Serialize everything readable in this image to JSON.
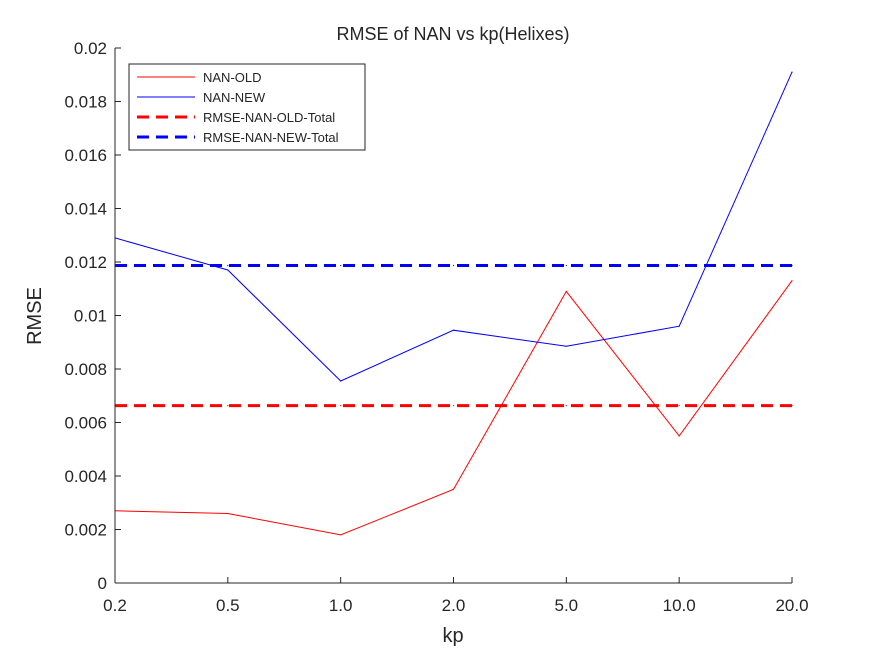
{
  "chart_data": {
    "type": "line",
    "title": "RMSE of NAN vs kp(Helixes)",
    "xlabel": "kp",
    "ylabel": "RMSE",
    "categories": [
      "0.2",
      "0.5",
      "1.0",
      "2.0",
      "5.0",
      "10.0",
      "20.0"
    ],
    "ylim": [
      0,
      0.02
    ],
    "yticks": [
      "0",
      "0.002",
      "0.004",
      "0.006",
      "0.008",
      "0.01",
      "0.012",
      "0.014",
      "0.016",
      "0.018",
      "0.02"
    ],
    "grid": false,
    "legend_position": "top-left",
    "series": [
      {
        "name": "NAN-OLD",
        "color": "#ff0000",
        "style": "solid",
        "values": [
          0.0027,
          0.0026,
          0.0018,
          0.0035,
          0.0109,
          0.0055,
          0.0113
        ]
      },
      {
        "name": "NAN-NEW",
        "color": "#0000ff",
        "style": "solid",
        "values": [
          0.0129,
          0.0117,
          0.00755,
          0.00945,
          0.00885,
          0.0096,
          0.0191
        ]
      },
      {
        "name": "RMSE-NAN-OLD-Total",
        "color": "#ff0000",
        "style": "dashed",
        "values": [
          0.00663,
          0.00663,
          0.00663,
          0.00663,
          0.00663,
          0.00663,
          0.00663
        ]
      },
      {
        "name": "RMSE-NAN-NEW-Total",
        "color": "#0000ff",
        "style": "dashed",
        "values": [
          0.01187,
          0.01187,
          0.01187,
          0.01187,
          0.01187,
          0.01187,
          0.01187
        ]
      }
    ]
  }
}
